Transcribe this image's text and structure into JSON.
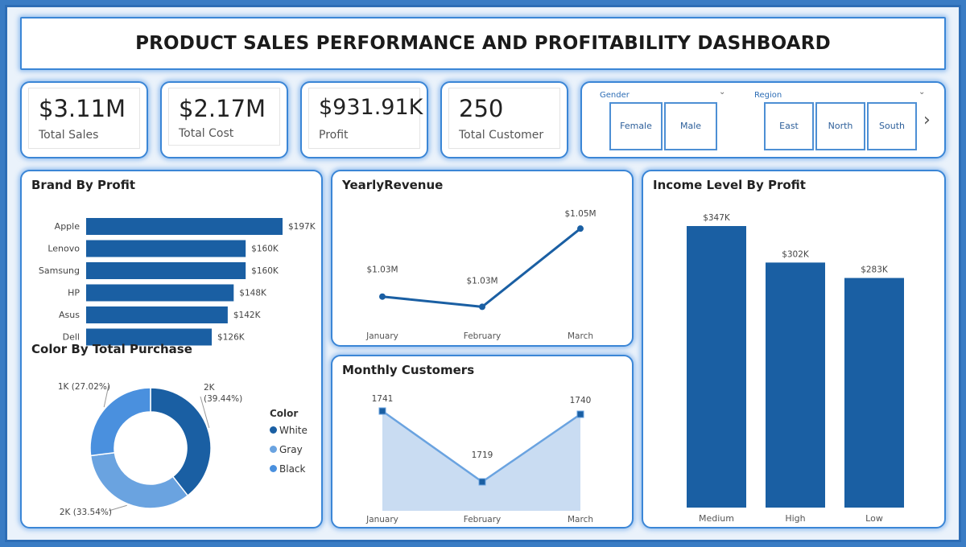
{
  "dashboard": {
    "title": "PRODUCT SALES PERFORMANCE AND PROFITABILITY DASHBOARD"
  },
  "kpis": [
    {
      "value": "$3.11M",
      "label": "Total Sales"
    },
    {
      "value": "$2.17M",
      "label": "Total Cost"
    },
    {
      "value": "$931.91K",
      "label": "Profit"
    },
    {
      "value": "250",
      "label": "Total Customer"
    }
  ],
  "slicers": {
    "gender": {
      "title": "Gender",
      "options": [
        "Female",
        "Male"
      ]
    },
    "region": {
      "title": "Region",
      "options": [
        "East",
        "North",
        "South"
      ]
    }
  },
  "colors": {
    "dark_blue": "#1a5fa3",
    "mid_blue": "#6aa3e0",
    "light_blue": "#c9dcf2",
    "accent": "#3b86d6"
  },
  "chart_data": [
    {
      "type": "bar",
      "orientation": "horizontal",
      "title": "Brand By Profit",
      "categories": [
        "Apple",
        "Lenovo",
        "Samsung",
        "HP",
        "Asus",
        "Dell"
      ],
      "values": [
        197,
        160,
        160,
        148,
        142,
        126
      ],
      "labels": [
        "$197K",
        "$160K",
        "$160K",
        "$148K",
        "$142K",
        "$126K"
      ],
      "unit": "K"
    },
    {
      "type": "pie",
      "donut": true,
      "title": "Color By Total Purchase",
      "legend_title": "Color",
      "categories": [
        "White",
        "Gray",
        "Black"
      ],
      "values": [
        39.44,
        33.54,
        27.02
      ],
      "labels": [
        "2K (39.44%)",
        "2K (33.54%)",
        "1K (27.02%)"
      ],
      "legend": "right"
    },
    {
      "type": "line",
      "title": "YearlyRevenue",
      "categories": [
        "January",
        "February",
        "March"
      ],
      "values": [
        1.03,
        1.027,
        1.05
      ],
      "labels": [
        "$1.03M",
        "$1.03M",
        "$1.05M"
      ]
    },
    {
      "type": "area",
      "title": "Monthly Customers",
      "categories": [
        "January",
        "February",
        "March"
      ],
      "values": [
        1741,
        1719,
        1740
      ],
      "labels": [
        "1741",
        "1719",
        "1740"
      ]
    },
    {
      "type": "bar",
      "title": "Income Level By Profit",
      "categories": [
        "Medium",
        "High",
        "Low"
      ],
      "values": [
        347,
        302,
        283
      ],
      "labels": [
        "$347K",
        "$302K",
        "$283K"
      ]
    }
  ]
}
